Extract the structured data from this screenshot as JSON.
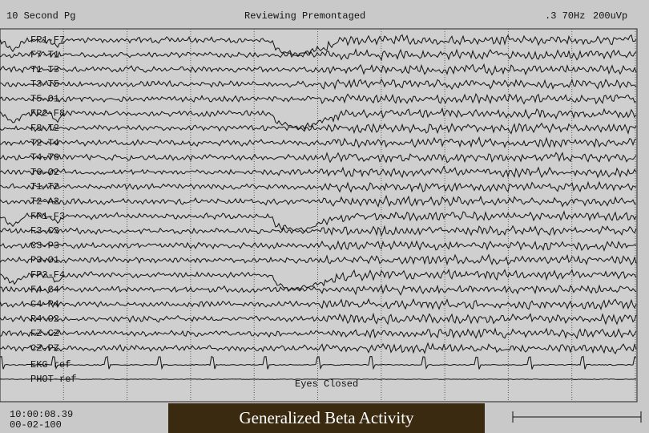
{
  "header": {
    "page": "10 Second Pg",
    "mode": "Reviewing Premontaged",
    "filter": ".3 70Hz",
    "sensitivity": "200uVp"
  },
  "channels": [
    "FP1-F7",
    "F7-T1",
    "T1-T3",
    "T3-T5",
    "T5-O1",
    "FP2-F8",
    "F8-T2",
    "T2-T4",
    "T4-T6",
    "T6-O2",
    "T1-T2",
    "T2-A2",
    "FP1-F3",
    "F3-C3",
    "C3-P3",
    "P3-O1",
    "FP2-F4",
    "F4-C4",
    "C4-P4",
    "P4-O2",
    "FZ-CZ",
    "CZ-PZ",
    "EKG-ref",
    "PHOT-ref"
  ],
  "footer": {
    "time": "10:00:08.39",
    "record": "00-02-100",
    "event": "Eyes Closed",
    "caption": "Generalized Beta Activity"
  }
}
